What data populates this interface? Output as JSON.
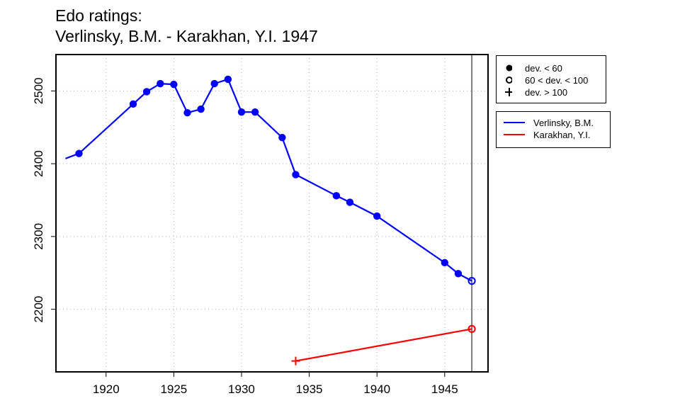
{
  "title_line1": "Edo ratings:",
  "title_line2": "Verlinsky, B.M. - Karakhan, Y.I. 1947",
  "legend_deviation": [
    {
      "symbol": "filled-circle",
      "label": "dev. < 60"
    },
    {
      "symbol": "open-circle",
      "label": "60 < dev. < 100"
    },
    {
      "symbol": "plus",
      "label": "dev. > 100"
    }
  ],
  "legend_players": [
    {
      "label": "Verlinsky, B.M.",
      "color": "#0000ff"
    },
    {
      "label": "Karakhan, Y.I.",
      "color": "#ff0000"
    }
  ],
  "chart_data": {
    "type": "line",
    "title": "Edo ratings:\nVerlinsky, B.M. - Karakhan, Y.I. 1947",
    "xlabel": "",
    "ylabel": "",
    "xlim": [
      1916.3,
      1948.2
    ],
    "ylim": [
      2114,
      2550
    ],
    "x_ticks": [
      1920,
      1925,
      1930,
      1935,
      1940,
      1945
    ],
    "y_ticks": [
      2200,
      2300,
      2400,
      2500
    ],
    "grid": true,
    "vline_x": 1947,
    "series": [
      {
        "name": "Verlinsky, B.M.",
        "color": "#0000ff",
        "points": [
          {
            "x": 1917,
            "y": 2407,
            "marker": "none"
          },
          {
            "x": 1918,
            "y": 2414,
            "marker": "filled-circle"
          },
          {
            "x": 1922,
            "y": 2482,
            "marker": "filled-circle"
          },
          {
            "x": 1923,
            "y": 2499,
            "marker": "filled-circle"
          },
          {
            "x": 1924,
            "y": 2510,
            "marker": "filled-circle"
          },
          {
            "x": 1925,
            "y": 2509,
            "marker": "filled-circle"
          },
          {
            "x": 1926,
            "y": 2470,
            "marker": "filled-circle"
          },
          {
            "x": 1927,
            "y": 2475,
            "marker": "filled-circle"
          },
          {
            "x": 1928,
            "y": 2510,
            "marker": "filled-circle"
          },
          {
            "x": 1929,
            "y": 2516,
            "marker": "filled-circle"
          },
          {
            "x": 1930,
            "y": 2471,
            "marker": "filled-circle"
          },
          {
            "x": 1931,
            "y": 2471,
            "marker": "filled-circle"
          },
          {
            "x": 1933,
            "y": 2436,
            "marker": "filled-circle"
          },
          {
            "x": 1934,
            "y": 2385,
            "marker": "filled-circle"
          },
          {
            "x": 1937,
            "y": 2356,
            "marker": "filled-circle"
          },
          {
            "x": 1938,
            "y": 2347,
            "marker": "filled-circle"
          },
          {
            "x": 1940,
            "y": 2328,
            "marker": "filled-circle"
          },
          {
            "x": 1945,
            "y": 2264,
            "marker": "filled-circle"
          },
          {
            "x": 1946,
            "y": 2249,
            "marker": "filled-circle"
          },
          {
            "x": 1947,
            "y": 2239,
            "marker": "open-circle"
          }
        ]
      },
      {
        "name": "Karakhan, Y.I.",
        "color": "#ff0000",
        "points": [
          {
            "x": 1934,
            "y": 2129,
            "marker": "plus"
          },
          {
            "x": 1947,
            "y": 2173,
            "marker": "open-circle"
          }
        ]
      }
    ]
  }
}
